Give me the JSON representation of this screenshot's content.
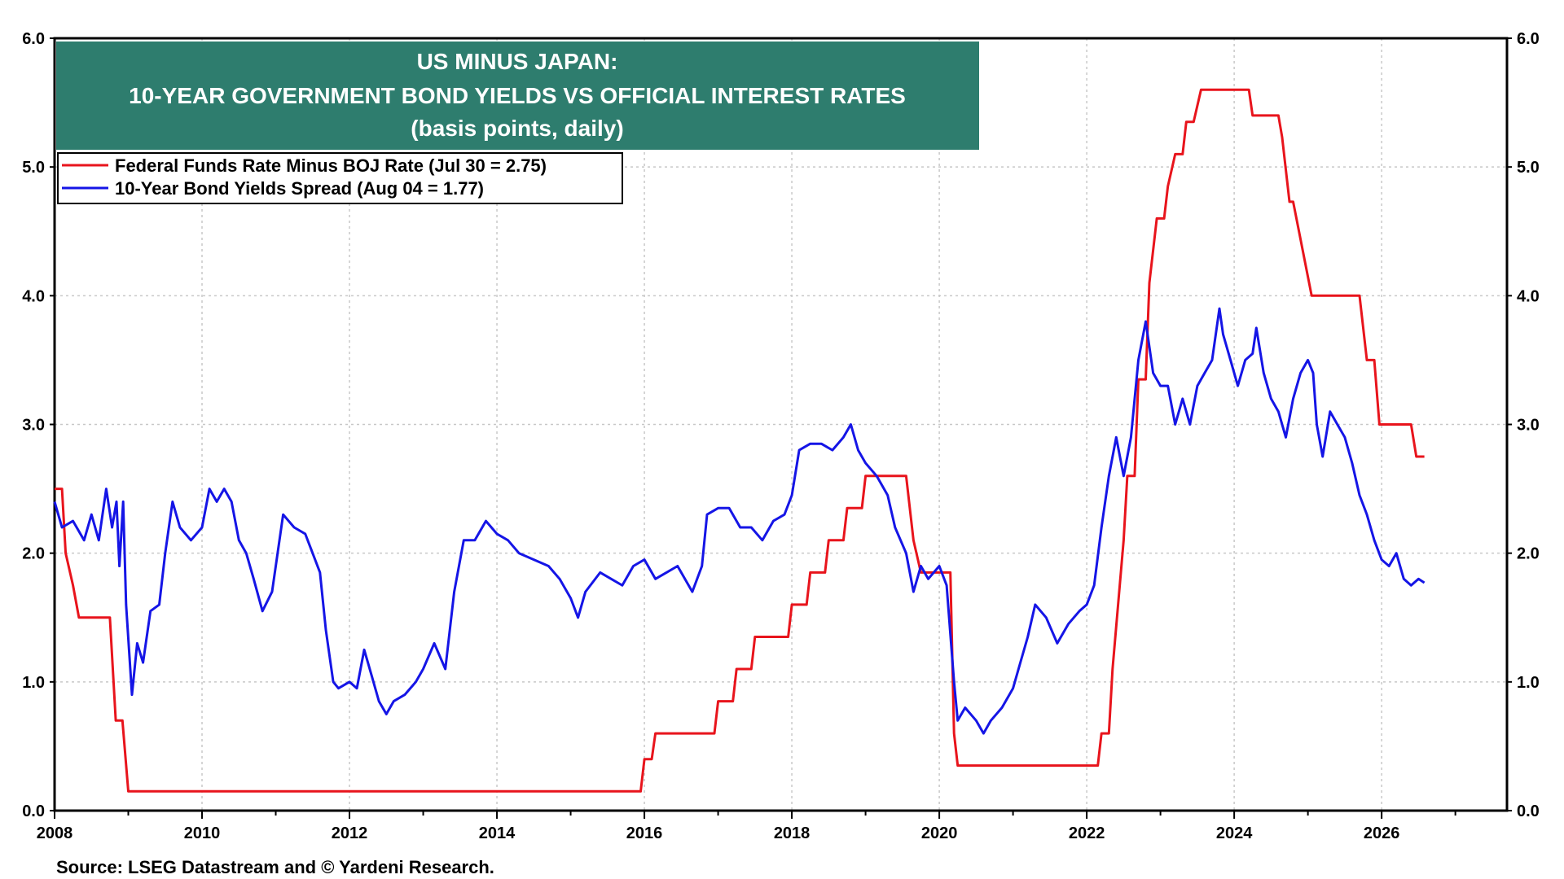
{
  "chart_data": {
    "type": "line",
    "title": "US MINUS JAPAN:",
    "subtitle": "10-YEAR GOVERNMENT BOND YIELDS VS OFFICIAL INTEREST RATES",
    "subtitle2": "(basis points, daily)",
    "title_box_color": "#2e7d6e",
    "source": "Source: LSEG Datastream and © Yardeni Research.",
    "xlim": [
      2008,
      2027.7
    ],
    "ylim": [
      0,
      6
    ],
    "grid": true,
    "legend_position": "top-left",
    "x_ticks": [
      "2008",
      "2010",
      "2012",
      "2014",
      "2016",
      "2018",
      "2020",
      "2022",
      "2024",
      "2026"
    ],
    "x_tick_values": [
      2008,
      2010,
      2012,
      2014,
      2016,
      2018,
      2020,
      2022,
      2024,
      2026
    ],
    "y_ticks_left": [
      "0.0",
      "1.0",
      "2.0",
      "3.0",
      "4.0",
      "5.0",
      "6.0"
    ],
    "y_ticks_right": [
      "0.0",
      "1.0",
      "2.0",
      "3.0",
      "4.0",
      "5.0",
      "6.0"
    ],
    "y_tick_values": [
      0,
      1,
      2,
      3,
      4,
      5,
      6
    ],
    "series": [
      {
        "name": "Federal Funds Rate Minus BOJ Rate (Jul 30 = 2.75)",
        "color": "#e8141c",
        "points": [
          [
            2008.0,
            2.5
          ],
          [
            2008.1,
            2.5
          ],
          [
            2008.15,
            2.0
          ],
          [
            2008.25,
            1.75
          ],
          [
            2008.33,
            1.5
          ],
          [
            2008.75,
            1.5
          ],
          [
            2008.83,
            0.7
          ],
          [
            2008.92,
            0.7
          ],
          [
            2009.0,
            0.15
          ],
          [
            2015.95,
            0.15
          ],
          [
            2016.0,
            0.4
          ],
          [
            2016.1,
            0.4
          ],
          [
            2016.15,
            0.6
          ],
          [
            2016.95,
            0.6
          ],
          [
            2017.0,
            0.85
          ],
          [
            2017.2,
            0.85
          ],
          [
            2017.25,
            1.1
          ],
          [
            2017.45,
            1.1
          ],
          [
            2017.5,
            1.35
          ],
          [
            2017.95,
            1.35
          ],
          [
            2018.0,
            1.6
          ],
          [
            2018.2,
            1.6
          ],
          [
            2018.25,
            1.85
          ],
          [
            2018.45,
            1.85
          ],
          [
            2018.5,
            2.1
          ],
          [
            2018.7,
            2.1
          ],
          [
            2018.75,
            2.35
          ],
          [
            2018.95,
            2.35
          ],
          [
            2019.0,
            2.6
          ],
          [
            2019.55,
            2.6
          ],
          [
            2019.65,
            2.1
          ],
          [
            2019.75,
            1.85
          ],
          [
            2019.85,
            1.85
          ],
          [
            2019.88,
            1.85
          ],
          [
            2020.0,
            1.85
          ],
          [
            2020.15,
            1.85
          ],
          [
            2020.2,
            0.6
          ],
          [
            2020.25,
            0.35
          ],
          [
            2022.15,
            0.35
          ],
          [
            2022.2,
            0.6
          ],
          [
            2022.3,
            0.6
          ],
          [
            2022.35,
            1.1
          ],
          [
            2022.5,
            2.1
          ],
          [
            2022.55,
            2.6
          ],
          [
            2022.65,
            2.6
          ],
          [
            2022.7,
            3.35
          ],
          [
            2022.8,
            3.35
          ],
          [
            2022.85,
            4.1
          ],
          [
            2022.95,
            4.6
          ],
          [
            2023.05,
            4.6
          ],
          [
            2023.1,
            4.85
          ],
          [
            2023.2,
            5.1
          ],
          [
            2023.3,
            5.1
          ],
          [
            2023.35,
            5.35
          ],
          [
            2023.45,
            5.35
          ],
          [
            2023.55,
            5.6
          ],
          [
            2024.2,
            5.6
          ],
          [
            2024.25,
            5.4
          ],
          [
            2024.6,
            5.4
          ],
          [
            2024.65,
            5.23
          ],
          [
            2024.75,
            4.73
          ],
          [
            2024.8,
            4.73
          ],
          [
            2025.05,
            4.0
          ],
          [
            2025.7,
            4.0
          ],
          [
            2025.8,
            3.5
          ],
          [
            2025.9,
            3.5
          ],
          [
            2025.97,
            3.0
          ],
          [
            2026.4,
            3.0
          ],
          [
            2026.47,
            2.75
          ],
          [
            2026.58,
            2.75
          ]
        ]
      },
      {
        "name": "10-Year Bond Yields Spread (Aug 04 = 1.77)",
        "color": "#1515e6",
        "points": [
          [
            2008.0,
            2.4
          ],
          [
            2008.1,
            2.2
          ],
          [
            2008.25,
            2.25
          ],
          [
            2008.4,
            2.1
          ],
          [
            2008.5,
            2.3
          ],
          [
            2008.6,
            2.1
          ],
          [
            2008.7,
            2.5
          ],
          [
            2008.78,
            2.2
          ],
          [
            2008.84,
            2.4
          ],
          [
            2008.88,
            1.9
          ],
          [
            2008.93,
            2.4
          ],
          [
            2008.97,
            1.6
          ],
          [
            2009.05,
            0.9
          ],
          [
            2009.12,
            1.3
          ],
          [
            2009.2,
            1.15
          ],
          [
            2009.3,
            1.55
          ],
          [
            2009.42,
            1.6
          ],
          [
            2009.5,
            2.0
          ],
          [
            2009.6,
            2.4
          ],
          [
            2009.7,
            2.2
          ],
          [
            2009.85,
            2.1
          ],
          [
            2010.0,
            2.2
          ],
          [
            2010.1,
            2.5
          ],
          [
            2010.2,
            2.4
          ],
          [
            2010.3,
            2.5
          ],
          [
            2010.4,
            2.4
          ],
          [
            2010.5,
            2.1
          ],
          [
            2010.6,
            2.0
          ],
          [
            2010.7,
            1.8
          ],
          [
            2010.82,
            1.55
          ],
          [
            2010.95,
            1.7
          ],
          [
            2011.1,
            2.3
          ],
          [
            2011.25,
            2.2
          ],
          [
            2011.4,
            2.15
          ],
          [
            2011.5,
            2.0
          ],
          [
            2011.6,
            1.85
          ],
          [
            2011.68,
            1.4
          ],
          [
            2011.78,
            1.0
          ],
          [
            2011.85,
            0.95
          ],
          [
            2012.0,
            1.0
          ],
          [
            2012.1,
            0.95
          ],
          [
            2012.2,
            1.25
          ],
          [
            2012.3,
            1.05
          ],
          [
            2012.4,
            0.85
          ],
          [
            2012.5,
            0.75
          ],
          [
            2012.6,
            0.85
          ],
          [
            2012.75,
            0.9
          ],
          [
            2012.9,
            1.0
          ],
          [
            2013.0,
            1.1
          ],
          [
            2013.15,
            1.3
          ],
          [
            2013.3,
            1.1
          ],
          [
            2013.42,
            1.7
          ],
          [
            2013.55,
            2.1
          ],
          [
            2013.7,
            2.1
          ],
          [
            2013.85,
            2.25
          ],
          [
            2014.0,
            2.15
          ],
          [
            2014.15,
            2.1
          ],
          [
            2014.3,
            2.0
          ],
          [
            2014.5,
            1.95
          ],
          [
            2014.7,
            1.9
          ],
          [
            2014.85,
            1.8
          ],
          [
            2015.0,
            1.65
          ],
          [
            2015.1,
            1.5
          ],
          [
            2015.2,
            1.7
          ],
          [
            2015.4,
            1.85
          ],
          [
            2015.55,
            1.8
          ],
          [
            2015.7,
            1.75
          ],
          [
            2015.85,
            1.9
          ],
          [
            2016.0,
            1.95
          ],
          [
            2016.15,
            1.8
          ],
          [
            2016.3,
            1.85
          ],
          [
            2016.45,
            1.9
          ],
          [
            2016.55,
            1.8
          ],
          [
            2016.65,
            1.7
          ],
          [
            2016.78,
            1.9
          ],
          [
            2016.85,
            2.3
          ],
          [
            2017.0,
            2.35
          ],
          [
            2017.15,
            2.35
          ],
          [
            2017.3,
            2.2
          ],
          [
            2017.45,
            2.2
          ],
          [
            2017.6,
            2.1
          ],
          [
            2017.75,
            2.25
          ],
          [
            2017.9,
            2.3
          ],
          [
            2018.0,
            2.45
          ],
          [
            2018.1,
            2.8
          ],
          [
            2018.25,
            2.85
          ],
          [
            2018.4,
            2.85
          ],
          [
            2018.55,
            2.8
          ],
          [
            2018.7,
            2.9
          ],
          [
            2018.8,
            3.0
          ],
          [
            2018.9,
            2.8
          ],
          [
            2019.0,
            2.7
          ],
          [
            2019.15,
            2.6
          ],
          [
            2019.3,
            2.45
          ],
          [
            2019.4,
            2.2
          ],
          [
            2019.55,
            2.0
          ],
          [
            2019.65,
            1.7
          ],
          [
            2019.75,
            1.9
          ],
          [
            2019.85,
            1.8
          ],
          [
            2020.0,
            1.9
          ],
          [
            2020.1,
            1.75
          ],
          [
            2020.2,
            1.0
          ],
          [
            2020.25,
            0.7
          ],
          [
            2020.35,
            0.8
          ],
          [
            2020.5,
            0.7
          ],
          [
            2020.6,
            0.6
          ],
          [
            2020.7,
            0.7
          ],
          [
            2020.85,
            0.8
          ],
          [
            2021.0,
            0.95
          ],
          [
            2021.1,
            1.15
          ],
          [
            2021.2,
            1.35
          ],
          [
            2021.3,
            1.6
          ],
          [
            2021.45,
            1.5
          ],
          [
            2021.6,
            1.3
          ],
          [
            2021.75,
            1.45
          ],
          [
            2021.9,
            1.55
          ],
          [
            2022.0,
            1.6
          ],
          [
            2022.1,
            1.75
          ],
          [
            2022.2,
            2.2
          ],
          [
            2022.3,
            2.6
          ],
          [
            2022.4,
            2.9
          ],
          [
            2022.5,
            2.6
          ],
          [
            2022.6,
            2.9
          ],
          [
            2022.7,
            3.5
          ],
          [
            2022.8,
            3.8
          ],
          [
            2022.9,
            3.4
          ],
          [
            2023.0,
            3.3
          ],
          [
            2023.1,
            3.3
          ],
          [
            2023.2,
            3.0
          ],
          [
            2023.3,
            3.2
          ],
          [
            2023.4,
            3.0
          ],
          [
            2023.5,
            3.3
          ],
          [
            2023.6,
            3.4
          ],
          [
            2023.7,
            3.5
          ],
          [
            2023.8,
            3.9
          ],
          [
            2023.85,
            3.7
          ],
          [
            2023.95,
            3.5
          ],
          [
            2024.05,
            3.3
          ],
          [
            2024.15,
            3.5
          ],
          [
            2024.25,
            3.55
          ],
          [
            2024.3,
            3.75
          ],
          [
            2024.4,
            3.4
          ],
          [
            2024.5,
            3.2
          ],
          [
            2024.6,
            3.1
          ],
          [
            2024.7,
            2.9
          ],
          [
            2024.8,
            3.2
          ],
          [
            2024.9,
            3.4
          ],
          [
            2025.0,
            3.5
          ],
          [
            2025.07,
            3.4
          ],
          [
            2025.12,
            3.0
          ],
          [
            2025.2,
            2.75
          ],
          [
            2025.3,
            3.1
          ],
          [
            2025.4,
            3.0
          ],
          [
            2025.5,
            2.9
          ],
          [
            2025.6,
            2.7
          ],
          [
            2025.7,
            2.45
          ],
          [
            2025.8,
            2.3
          ],
          [
            2025.9,
            2.1
          ],
          [
            2026.0,
            1.95
          ],
          [
            2026.1,
            1.9
          ],
          [
            2026.2,
            2.0
          ],
          [
            2026.3,
            1.8
          ],
          [
            2026.4,
            1.75
          ],
          [
            2026.5,
            1.8
          ],
          [
            2026.58,
            1.77
          ]
        ]
      }
    ]
  }
}
